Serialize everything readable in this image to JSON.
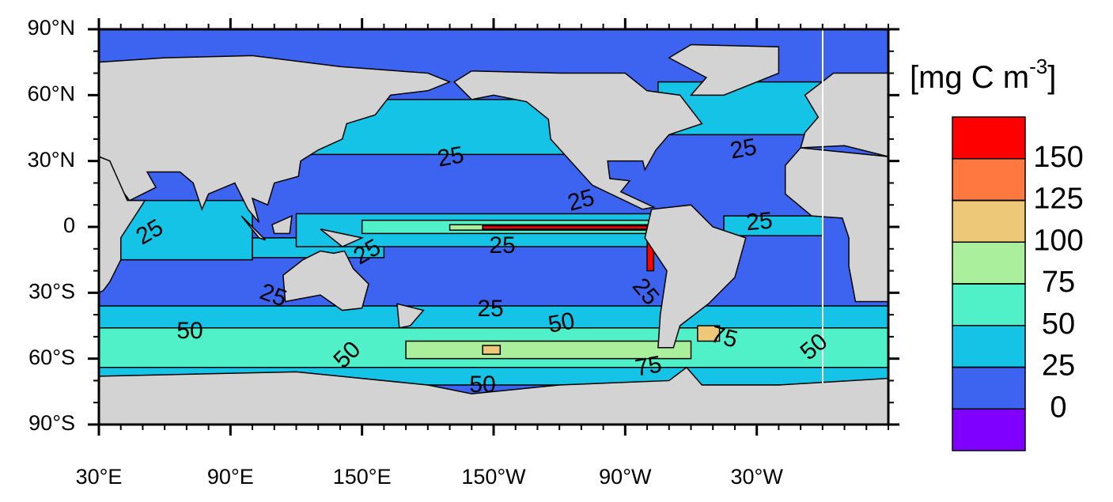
{
  "map": {
    "xlim": [
      30,
      390
    ],
    "ylim": [
      -90,
      90
    ],
    "lat_ticks": [
      {
        "value": 90,
        "label": "90°N"
      },
      {
        "value": 60,
        "label": "60°N"
      },
      {
        "value": 30,
        "label": "30°N"
      },
      {
        "value": 0,
        "label": "0"
      },
      {
        "value": -30,
        "label": "30°S"
      },
      {
        "value": -60,
        "label": "60°S"
      },
      {
        "value": -90,
        "label": "90°S"
      }
    ],
    "lon_ticks": [
      {
        "value": 30,
        "label": "30°E"
      },
      {
        "value": 90,
        "label": "90°E"
      },
      {
        "value": 150,
        "label": "150°E"
      },
      {
        "value": 210,
        "label": "150°W"
      },
      {
        "value": 270,
        "label": "90°W"
      },
      {
        "value": 330,
        "label": "30°W"
      }
    ],
    "contour_labels": [
      25,
      25,
      25,
      25,
      25,
      25,
      25,
      25,
      25,
      25,
      50,
      50,
      50,
      50,
      50,
      75,
      75
    ],
    "colorbar": {
      "unit": {
        "base": "[mg C m",
        "sup": "-3",
        "close": "]"
      },
      "ticks": [
        0,
        25,
        50,
        75,
        100,
        125,
        150
      ],
      "colors": [
        "#8000ff",
        "#3c64f0",
        "#14c3e6",
        "#50f0c8",
        "#aaf09c",
        "#ecc878",
        "#ff7840",
        "#ff0000"
      ]
    }
  }
}
